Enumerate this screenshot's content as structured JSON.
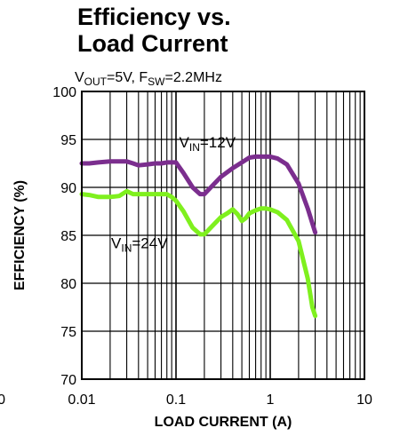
{
  "chart_data": {
    "type": "line",
    "title_lines": [
      "Efficiency vs.",
      "Load Current"
    ],
    "subtitle": {
      "a_pre": "V",
      "a_sub": "OUT",
      "a_post": "=5V, ",
      "b_pre": "F",
      "b_sub": "SW",
      "b_post": "=2.2MHz"
    },
    "xlabel": "LOAD CURRENT (A)",
    "ylabel": "EFFICIENCY (%)",
    "x_scale": "log",
    "xlim": [
      0.01,
      10
    ],
    "ylim": [
      70,
      100
    ],
    "x_ticks": [
      0.01,
      0.1,
      1,
      10
    ],
    "x_tick_labels": [
      "0.01",
      "0.1",
      "1",
      "10"
    ],
    "x_extra_label": "0",
    "y_ticks": [
      70,
      75,
      80,
      85,
      90,
      95,
      100
    ],
    "y_tick_labels": [
      "70",
      "75",
      "80",
      "85",
      "90",
      "95",
      "100"
    ],
    "grid": true,
    "series": [
      {
        "color": "#7b2e8e",
        "label": {
          "pre": "V",
          "sub": "IN",
          "post": "=12V"
        },
        "points": [
          [
            0.01,
            92.5
          ],
          [
            0.012,
            92.5
          ],
          [
            0.015,
            92.6
          ],
          [
            0.02,
            92.7
          ],
          [
            0.025,
            92.7
          ],
          [
            0.03,
            92.7
          ],
          [
            0.035,
            92.5
          ],
          [
            0.04,
            92.3
          ],
          [
            0.05,
            92.4
          ],
          [
            0.06,
            92.5
          ],
          [
            0.07,
            92.5
          ],
          [
            0.08,
            92.6
          ],
          [
            0.09,
            92.6
          ],
          [
            0.1,
            92.6
          ],
          [
            0.12,
            91.5
          ],
          [
            0.15,
            90.0
          ],
          [
            0.18,
            89.3
          ],
          [
            0.2,
            89.3
          ],
          [
            0.25,
            90.3
          ],
          [
            0.3,
            91.1
          ],
          [
            0.4,
            92.0
          ],
          [
            0.5,
            92.6
          ],
          [
            0.6,
            93.1
          ],
          [
            0.7,
            93.2
          ],
          [
            0.8,
            93.2
          ],
          [
            0.9,
            93.2
          ],
          [
            1.0,
            93.2
          ],
          [
            1.2,
            93.0
          ],
          [
            1.5,
            92.4
          ],
          [
            2.0,
            90.4
          ],
          [
            2.5,
            87.8
          ],
          [
            3.0,
            85.3
          ]
        ]
      },
      {
        "color": "#7ff01e",
        "label": {
          "pre": "V",
          "sub": "IN",
          "post": "=24V"
        },
        "points": [
          [
            0.01,
            89.3
          ],
          [
            0.012,
            89.2
          ],
          [
            0.015,
            89.0
          ],
          [
            0.02,
            89.0
          ],
          [
            0.025,
            89.1
          ],
          [
            0.03,
            89.6
          ],
          [
            0.035,
            89.3
          ],
          [
            0.04,
            89.3
          ],
          [
            0.05,
            89.3
          ],
          [
            0.06,
            89.3
          ],
          [
            0.07,
            89.3
          ],
          [
            0.08,
            89.3
          ],
          [
            0.09,
            89.0
          ],
          [
            0.1,
            88.6
          ],
          [
            0.12,
            87.5
          ],
          [
            0.15,
            85.8
          ],
          [
            0.18,
            85.1
          ],
          [
            0.2,
            85.1
          ],
          [
            0.25,
            86.1
          ],
          [
            0.3,
            86.9
          ],
          [
            0.35,
            87.3
          ],
          [
            0.4,
            87.7
          ],
          [
            0.45,
            87.2
          ],
          [
            0.5,
            86.5
          ],
          [
            0.55,
            86.8
          ],
          [
            0.6,
            87.3
          ],
          [
            0.7,
            87.6
          ],
          [
            0.8,
            87.8
          ],
          [
            0.9,
            87.8
          ],
          [
            1.0,
            87.7
          ],
          [
            1.2,
            87.4
          ],
          [
            1.5,
            86.6
          ],
          [
            2.0,
            84.4
          ],
          [
            2.5,
            80.5
          ],
          [
            2.8,
            77.5
          ],
          [
            3.0,
            76.6
          ]
        ]
      }
    ]
  }
}
